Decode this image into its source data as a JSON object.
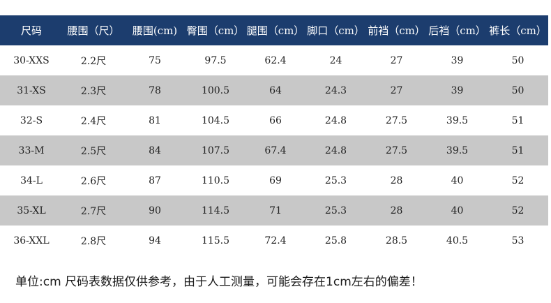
{
  "table": {
    "headers": [
      "尺码",
      "腰围（尺）",
      "腰围(cm)",
      "臀围（cm）",
      "腿围（cm）",
      "脚口（cm）",
      "前裆（cm）",
      "后裆（cm）",
      "裤长（cm）"
    ],
    "rows": [
      [
        "30-XXS",
        "2.2尺",
        "75",
        "97.5",
        "62.4",
        "24",
        "27",
        "39",
        "50"
      ],
      [
        "31-XS",
        "2.3尺",
        "78",
        "100.5",
        "64",
        "24.3",
        "27",
        "39",
        "50"
      ],
      [
        "32-S",
        "2.4尺",
        "81",
        "104.5",
        "66",
        "24.8",
        "27.5",
        "39.5",
        "51"
      ],
      [
        "33-M",
        "2.5尺",
        "84",
        "107.5",
        "67.4",
        "24.8",
        "27.5",
        "39.5",
        "51"
      ],
      [
        "34-L",
        "2.6尺",
        "87",
        "110.5",
        "69",
        "25.3",
        "28",
        "40",
        "52"
      ],
      [
        "35-XL",
        "2.7尺",
        "90",
        "114.5",
        "71",
        "25.3",
        "28",
        "40",
        "52"
      ],
      [
        "36-XXL",
        "2.8尺",
        "94",
        "115.5",
        "72.4",
        "25.8",
        "28.5",
        "40.5",
        "53"
      ]
    ]
  },
  "note": "单位:cm 尺码表数据仅供参考，由于人工测量，可能会存在1cm左右的偏差！",
  "colors": {
    "header_bg": "#1c3d6e",
    "header_text": "#ffffff",
    "shaded_row": "#c8c8c8"
  }
}
